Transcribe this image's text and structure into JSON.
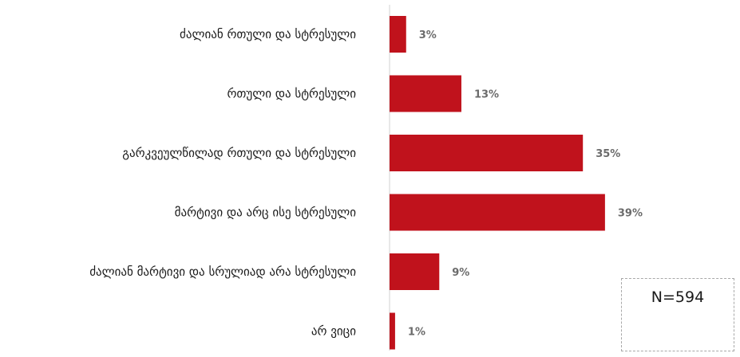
{
  "chart_data": {
    "type": "bar",
    "orientation": "horizontal",
    "categories": [
      "ძალიან რთული და სტრესული",
      "რთული და სტრესული",
      "გარკვეულწილად რთული და სტრესული",
      "მარტივი და არც ისე სტრესული",
      "ძალიან მარტივი და სრულიად არა სტრესული",
      "არ ვიცი"
    ],
    "values": [
      3,
      13,
      35,
      39,
      9,
      1
    ],
    "value_labels": [
      "3%",
      "13%",
      "35%",
      "39%",
      "9%",
      "1%"
    ],
    "unit": "%",
    "xlim": [
      0,
      100
    ],
    "grid": false,
    "legend": "none",
    "bar_color": "#c0121c",
    "axis_color": "#d0d0d0"
  },
  "annotation": {
    "sample_size": "N=594"
  }
}
